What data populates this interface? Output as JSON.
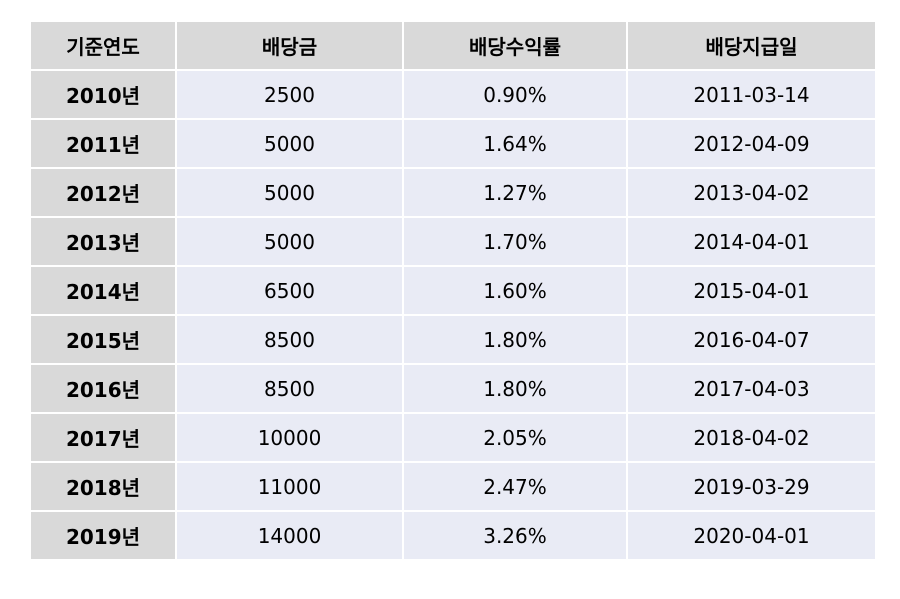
{
  "table": {
    "headers": [
      "기준연도",
      "배당금",
      "배당수익률",
      "배당지급일"
    ],
    "rows": [
      [
        "2010년",
        "2500",
        "0.90%",
        "2011-03-14"
      ],
      [
        "2011년",
        "5000",
        "1.64%",
        "2012-04-09"
      ],
      [
        "2012년",
        "5000",
        "1.27%",
        "2013-04-02"
      ],
      [
        "2013년",
        "5000",
        "1.70%",
        "2014-04-01"
      ],
      [
        "2014년",
        "6500",
        "1.60%",
        "2015-04-01"
      ],
      [
        "2015년",
        "8500",
        "1.80%",
        "2016-04-07"
      ],
      [
        "2016년",
        "8500",
        "1.80%",
        "2017-04-03"
      ],
      [
        "2017년",
        "10000",
        "2.05%",
        "2018-04-02"
      ],
      [
        "2018년",
        "11000",
        "2.47%",
        "2019-03-29"
      ],
      [
        "2019년",
        "14000",
        "3.26%",
        "2020-04-01"
      ]
    ]
  },
  "colors": {
    "header_bg": "#d9d9d9",
    "year_bg": "#d9d9d9",
    "cell_bg": "#e9ebf5",
    "gap": "#ffffff"
  }
}
